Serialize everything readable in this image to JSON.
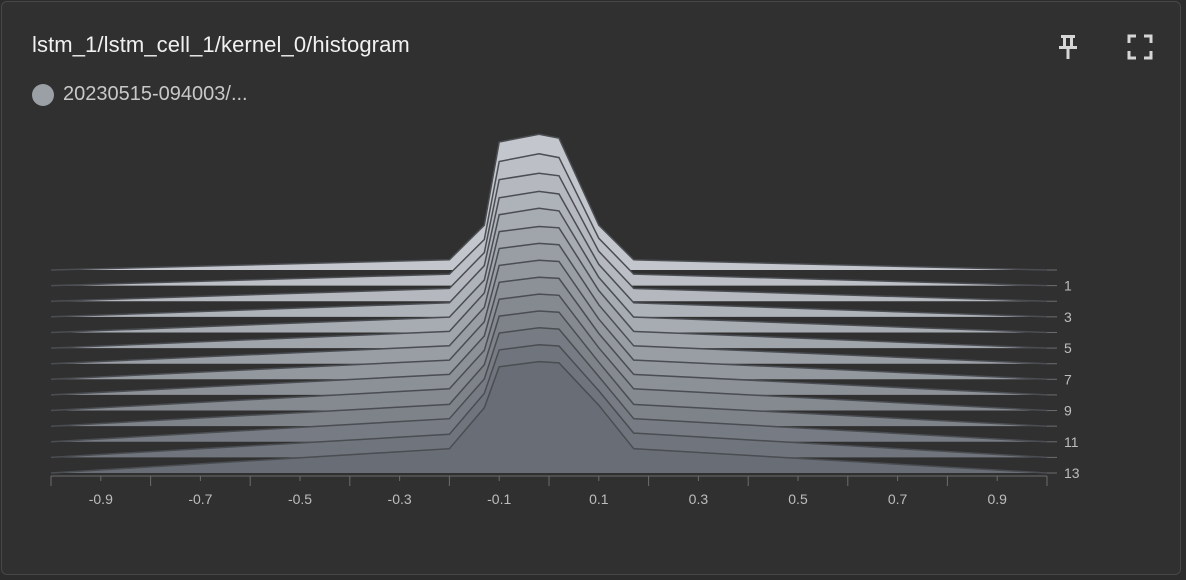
{
  "card": {
    "title": "lstm_1/lstm_cell_1/kernel_0/histogram",
    "run_label": "20230515-094003/...",
    "run_color": "#9aa0a6",
    "pin_icon": "pin-icon",
    "fullscreen_icon": "fullscreen-icon"
  },
  "chart_data": {
    "type": "area",
    "mode": "offset",
    "x_ticks": [
      "-0.9",
      "-0.7",
      "-0.5",
      "-0.3",
      "-0.1",
      "0.1",
      "0.3",
      "0.5",
      "0.7",
      "0.9"
    ],
    "x_tick_values": [
      -0.9,
      -0.7,
      -0.5,
      -0.3,
      -0.1,
      0.1,
      0.3,
      0.5,
      0.7,
      0.9
    ],
    "xlim": [
      -1.0,
      1.0
    ],
    "step_ticks": [
      "1",
      "3",
      "5",
      "7",
      "9",
      "11",
      "13"
    ],
    "step_tick_values": [
      1,
      3,
      5,
      7,
      9,
      11,
      13
    ],
    "steps": [
      0,
      1,
      2,
      3,
      4,
      5,
      6,
      7,
      8,
      9,
      10,
      11,
      12,
      13
    ],
    "bins_x": [
      -1.0,
      -0.2,
      -0.13,
      -0.1,
      -0.02,
      0.02,
      0.1,
      0.17,
      1.0
    ],
    "series": [
      {
        "step": 0,
        "values": [
          0,
          0.08,
          0.35,
          1.0,
          1.06,
          1.03,
          0.35,
          0.08,
          0
        ]
      },
      {
        "step": 1,
        "values": [
          0,
          0.09,
          0.36,
          0.97,
          1.03,
          1.0,
          0.37,
          0.09,
          0
        ]
      },
      {
        "step": 2,
        "values": [
          0,
          0.1,
          0.38,
          0.95,
          1.0,
          0.98,
          0.39,
          0.1,
          0
        ]
      },
      {
        "step": 3,
        "values": [
          0,
          0.11,
          0.4,
          0.93,
          0.98,
          0.96,
          0.41,
          0.11,
          0
        ]
      },
      {
        "step": 4,
        "values": [
          0,
          0.12,
          0.41,
          0.92,
          0.97,
          0.95,
          0.43,
          0.12,
          0
        ]
      },
      {
        "step": 5,
        "values": [
          0,
          0.13,
          0.43,
          0.91,
          0.95,
          0.94,
          0.45,
          0.13,
          0
        ]
      },
      {
        "step": 6,
        "values": [
          0,
          0.14,
          0.44,
          0.9,
          0.94,
          0.93,
          0.46,
          0.14,
          0
        ]
      },
      {
        "step": 7,
        "values": [
          0,
          0.15,
          0.45,
          0.89,
          0.93,
          0.92,
          0.47,
          0.15,
          0
        ]
      },
      {
        "step": 8,
        "values": [
          0,
          0.16,
          0.46,
          0.88,
          0.92,
          0.91,
          0.48,
          0.16,
          0
        ]
      },
      {
        "step": 9,
        "values": [
          0,
          0.17,
          0.47,
          0.87,
          0.91,
          0.9,
          0.49,
          0.17,
          0
        ]
      },
      {
        "step": 10,
        "values": [
          0,
          0.17,
          0.48,
          0.86,
          0.9,
          0.89,
          0.5,
          0.17,
          0
        ]
      },
      {
        "step": 11,
        "values": [
          0,
          0.18,
          0.49,
          0.85,
          0.89,
          0.88,
          0.51,
          0.18,
          0
        ]
      },
      {
        "step": 12,
        "values": [
          0,
          0.18,
          0.5,
          0.84,
          0.88,
          0.87,
          0.52,
          0.19,
          0
        ]
      },
      {
        "step": 13,
        "values": [
          0,
          0.19,
          0.51,
          0.83,
          0.87,
          0.86,
          0.53,
          0.19,
          0
        ]
      }
    ],
    "fill_color_oldest": "#c3c7cd",
    "fill_color_newest": "#696d75",
    "line_color": "#4a4d52",
    "axis_color": "#6d6d6d"
  }
}
